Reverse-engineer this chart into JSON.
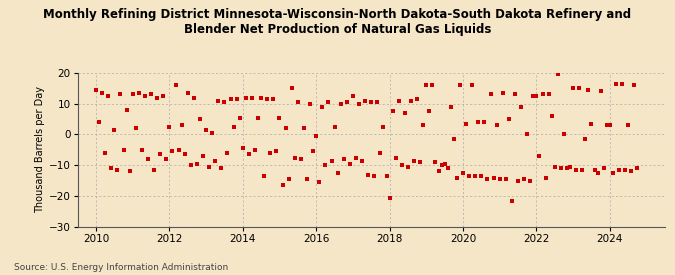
{
  "title": "Monthly Refining District Minnesota-Wisconsin-North Dakota-South Dakota Refinery and\nBlender Net Production of Natural Gas Liquids",
  "ylabel": "Thousand Barrels per Day",
  "source": "Source: U.S. Energy Information Administration",
  "background_color": "#f5e6c8",
  "dot_color": "#cc0000",
  "ylim": [
    -30,
    20
  ],
  "yticks": [
    -30,
    -20,
    -10,
    0,
    10,
    20
  ],
  "xlim_start": 2009.5,
  "xlim_end": 2025.5,
  "xticks": [
    2010,
    2012,
    2014,
    2016,
    2018,
    2020,
    2022,
    2024
  ],
  "data_points": [
    [
      2010.0,
      14.5
    ],
    [
      2010.083,
      4.0
    ],
    [
      2010.167,
      13.5
    ],
    [
      2010.25,
      -6.0
    ],
    [
      2010.333,
      12.5
    ],
    [
      2010.417,
      -11.0
    ],
    [
      2010.5,
      1.5
    ],
    [
      2010.583,
      -11.5
    ],
    [
      2010.667,
      13.0
    ],
    [
      2010.75,
      -5.0
    ],
    [
      2010.833,
      8.0
    ],
    [
      2010.917,
      -12.0
    ],
    [
      2011.0,
      13.0
    ],
    [
      2011.083,
      2.0
    ],
    [
      2011.167,
      13.5
    ],
    [
      2011.25,
      -5.0
    ],
    [
      2011.333,
      12.5
    ],
    [
      2011.417,
      -8.0
    ],
    [
      2011.5,
      13.0
    ],
    [
      2011.583,
      -11.5
    ],
    [
      2011.667,
      12.0
    ],
    [
      2011.75,
      -6.5
    ],
    [
      2011.833,
      12.5
    ],
    [
      2011.917,
      -8.0
    ],
    [
      2012.0,
      2.5
    ],
    [
      2012.083,
      -5.5
    ],
    [
      2012.167,
      16.0
    ],
    [
      2012.25,
      -5.0
    ],
    [
      2012.333,
      3.0
    ],
    [
      2012.417,
      -6.5
    ],
    [
      2012.5,
      13.5
    ],
    [
      2012.583,
      -10.0
    ],
    [
      2012.667,
      12.0
    ],
    [
      2012.75,
      -9.5
    ],
    [
      2012.833,
      5.0
    ],
    [
      2012.917,
      -7.0
    ],
    [
      2013.0,
      1.5
    ],
    [
      2013.083,
      -10.5
    ],
    [
      2013.167,
      0.5
    ],
    [
      2013.25,
      -8.5
    ],
    [
      2013.333,
      11.0
    ],
    [
      2013.417,
      -11.0
    ],
    [
      2013.5,
      10.5
    ],
    [
      2013.583,
      -6.0
    ],
    [
      2013.667,
      11.5
    ],
    [
      2013.75,
      2.5
    ],
    [
      2013.833,
      11.5
    ],
    [
      2013.917,
      5.5
    ],
    [
      2014.0,
      -4.5
    ],
    [
      2014.083,
      12.0
    ],
    [
      2014.167,
      -6.5
    ],
    [
      2014.25,
      12.0
    ],
    [
      2014.333,
      -5.0
    ],
    [
      2014.417,
      5.5
    ],
    [
      2014.5,
      12.0
    ],
    [
      2014.583,
      -13.5
    ],
    [
      2014.667,
      11.5
    ],
    [
      2014.75,
      -6.0
    ],
    [
      2014.833,
      11.5
    ],
    [
      2014.917,
      -5.5
    ],
    [
      2015.0,
      5.5
    ],
    [
      2015.083,
      -16.5
    ],
    [
      2015.167,
      2.0
    ],
    [
      2015.25,
      -14.5
    ],
    [
      2015.333,
      15.0
    ],
    [
      2015.417,
      -7.5
    ],
    [
      2015.5,
      10.5
    ],
    [
      2015.583,
      -8.0
    ],
    [
      2015.667,
      2.0
    ],
    [
      2015.75,
      -14.5
    ],
    [
      2015.833,
      10.0
    ],
    [
      2015.917,
      -5.5
    ],
    [
      2016.0,
      -0.5
    ],
    [
      2016.083,
      -15.5
    ],
    [
      2016.167,
      9.0
    ],
    [
      2016.25,
      -10.0
    ],
    [
      2016.333,
      10.5
    ],
    [
      2016.417,
      -8.5
    ],
    [
      2016.5,
      2.5
    ],
    [
      2016.583,
      -12.5
    ],
    [
      2016.667,
      10.0
    ],
    [
      2016.75,
      -8.0
    ],
    [
      2016.833,
      10.5
    ],
    [
      2016.917,
      -9.5
    ],
    [
      2017.0,
      12.5
    ],
    [
      2017.083,
      -7.5
    ],
    [
      2017.167,
      10.0
    ],
    [
      2017.25,
      -8.5
    ],
    [
      2017.333,
      11.0
    ],
    [
      2017.417,
      -13.0
    ],
    [
      2017.5,
      10.5
    ],
    [
      2017.583,
      -13.5
    ],
    [
      2017.667,
      10.5
    ],
    [
      2017.75,
      -6.0
    ],
    [
      2017.833,
      2.5
    ],
    [
      2017.917,
      -13.5
    ],
    [
      2018.0,
      -20.5
    ],
    [
      2018.083,
      7.5
    ],
    [
      2018.167,
      -7.5
    ],
    [
      2018.25,
      11.0
    ],
    [
      2018.333,
      -10.0
    ],
    [
      2018.417,
      7.0
    ],
    [
      2018.5,
      -10.5
    ],
    [
      2018.583,
      11.0
    ],
    [
      2018.667,
      -8.5
    ],
    [
      2018.75,
      11.5
    ],
    [
      2018.833,
      -9.0
    ],
    [
      2018.917,
      3.0
    ],
    [
      2019.0,
      16.0
    ],
    [
      2019.083,
      7.5
    ],
    [
      2019.167,
      16.0
    ],
    [
      2019.25,
      -9.0
    ],
    [
      2019.333,
      -12.0
    ],
    [
      2019.417,
      -10.0
    ],
    [
      2019.5,
      -9.5
    ],
    [
      2019.583,
      -11.0
    ],
    [
      2019.667,
      9.0
    ],
    [
      2019.75,
      -1.5
    ],
    [
      2019.833,
      -14.0
    ],
    [
      2019.917,
      16.0
    ],
    [
      2020.0,
      -12.5
    ],
    [
      2020.083,
      3.5
    ],
    [
      2020.167,
      -13.5
    ],
    [
      2020.25,
      16.0
    ],
    [
      2020.333,
      -13.5
    ],
    [
      2020.417,
      4.0
    ],
    [
      2020.5,
      -13.5
    ],
    [
      2020.583,
      4.0
    ],
    [
      2020.667,
      -14.5
    ],
    [
      2020.75,
      13.0
    ],
    [
      2020.833,
      -14.0
    ],
    [
      2020.917,
      3.0
    ],
    [
      2021.0,
      -14.5
    ],
    [
      2021.083,
      13.5
    ],
    [
      2021.167,
      -14.5
    ],
    [
      2021.25,
      5.0
    ],
    [
      2021.333,
      -21.5
    ],
    [
      2021.417,
      13.0
    ],
    [
      2021.5,
      -15.0
    ],
    [
      2021.583,
      9.0
    ],
    [
      2021.667,
      -14.5
    ],
    [
      2021.75,
      0.0
    ],
    [
      2021.833,
      -15.0
    ],
    [
      2021.917,
      12.5
    ],
    [
      2022.0,
      12.5
    ],
    [
      2022.083,
      -7.0
    ],
    [
      2022.167,
      13.0
    ],
    [
      2022.25,
      -14.0
    ],
    [
      2022.333,
      13.0
    ],
    [
      2022.417,
      6.0
    ],
    [
      2022.5,
      -10.5
    ],
    [
      2022.583,
      19.5
    ],
    [
      2022.667,
      -11.0
    ],
    [
      2022.75,
      0.0
    ],
    [
      2022.833,
      -11.0
    ],
    [
      2022.917,
      -10.5
    ],
    [
      2023.0,
      15.0
    ],
    [
      2023.083,
      -11.5
    ],
    [
      2023.167,
      15.0
    ],
    [
      2023.25,
      -11.5
    ],
    [
      2023.333,
      -1.5
    ],
    [
      2023.417,
      14.5
    ],
    [
      2023.5,
      3.5
    ],
    [
      2023.583,
      -11.5
    ],
    [
      2023.667,
      -12.5
    ],
    [
      2023.75,
      14.0
    ],
    [
      2023.833,
      -11.0
    ],
    [
      2023.917,
      3.0
    ],
    [
      2024.0,
      3.0
    ],
    [
      2024.083,
      -12.5
    ],
    [
      2024.167,
      16.5
    ],
    [
      2024.25,
      -11.5
    ],
    [
      2024.333,
      16.5
    ],
    [
      2024.417,
      -11.5
    ],
    [
      2024.5,
      3.0
    ],
    [
      2024.583,
      -12.0
    ],
    [
      2024.667,
      16.0
    ],
    [
      2024.75,
      -11.0
    ]
  ]
}
